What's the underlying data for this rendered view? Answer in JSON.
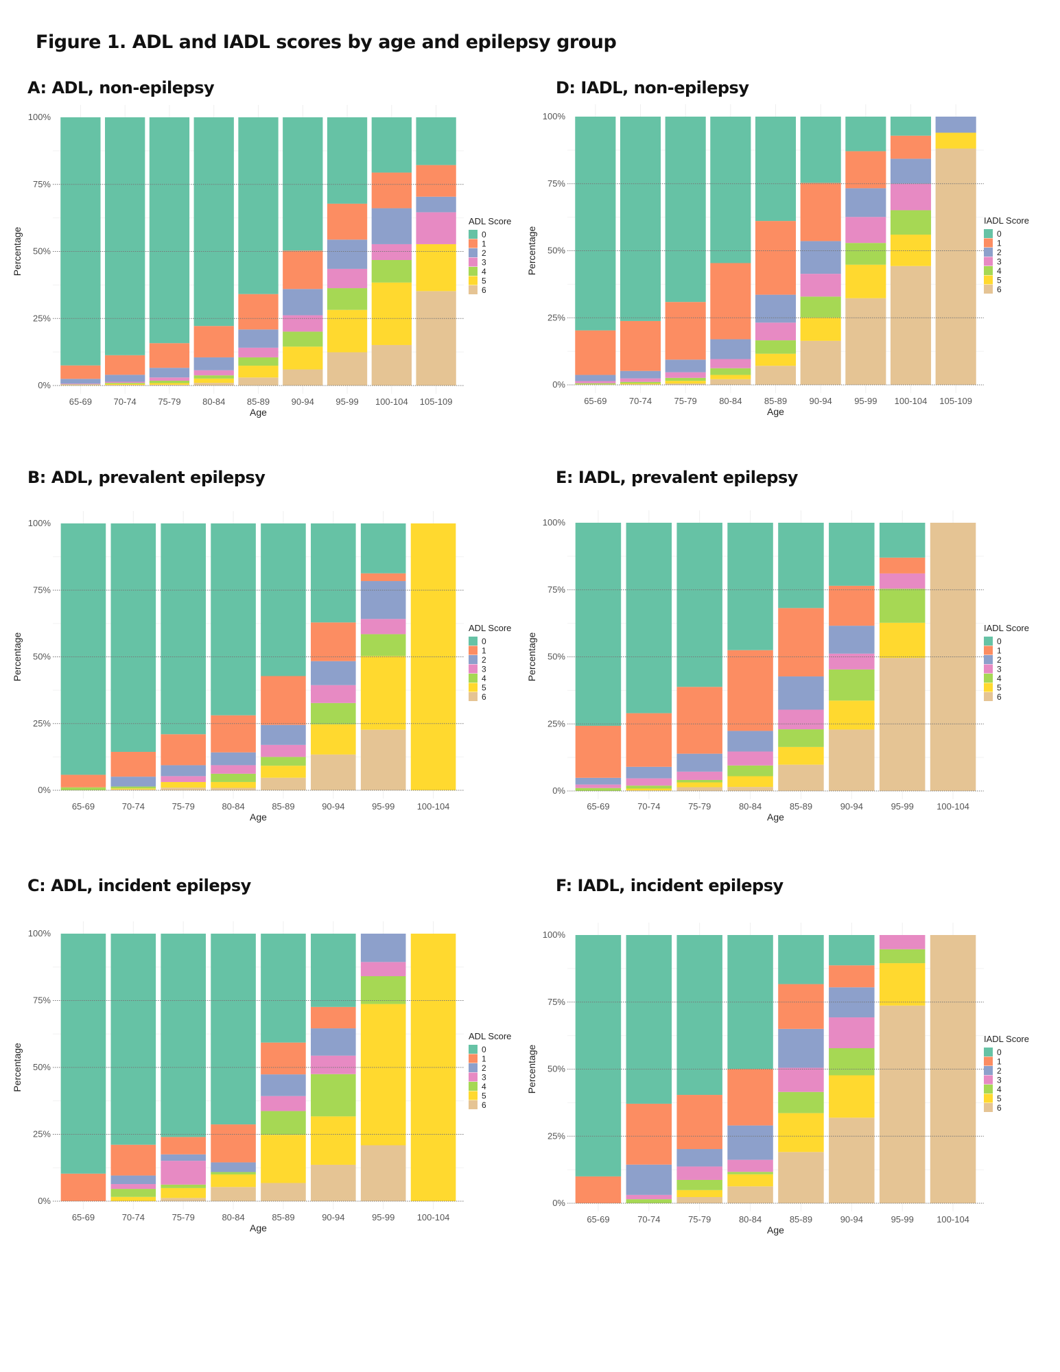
{
  "figure_title": "Figure 1. ADL and IADL scores by age and epilepsy group",
  "palette": {
    "0": "#66C2A5",
    "1": "#FC8D62",
    "2": "#8DA0CB",
    "3": "#E78AC3",
    "4": "#A6D854",
    "5": "#FFD92F",
    "6": "#E5C494"
  },
  "chart_data": [
    {
      "id": "A",
      "type": "bar",
      "stacked": true,
      "title": "A: ADL, non-epilepsy",
      "xlabel": "Age",
      "ylabel": "Percentage",
      "ylim": [
        0,
        100
      ],
      "yticks": [
        "0%",
        "25%",
        "50%",
        "75%",
        "100%"
      ],
      "grid": true,
      "legend": {
        "title": "ADL Score",
        "position": "right",
        "entries": [
          "0",
          "1",
          "2",
          "3",
          "4",
          "5",
          "6"
        ]
      },
      "categories": [
        "65-69",
        "70-74",
        "75-79",
        "80-84",
        "85-89",
        "90-94",
        "95-99",
        "100-104",
        "105-109"
      ],
      "series": [
        {
          "name": "0",
          "values": [
            92.5,
            88.7,
            84.2,
            77.8,
            65.9,
            49.7,
            32.2,
            20.6,
            17.8
          ]
        },
        {
          "name": "1",
          "values": [
            5.0,
            7.3,
            9.2,
            11.7,
            13.2,
            14.3,
            13.4,
            13.3,
            11.8
          ]
        },
        {
          "name": "2",
          "values": [
            1.8,
            2.6,
            3.6,
            4.8,
            6.8,
            9.8,
            10.9,
            13.4,
            5.8
          ]
        },
        {
          "name": "3",
          "values": [
            0.3,
            0.4,
            1.2,
            1.9,
            3.6,
            6.1,
            7.2,
            5.9,
            11.9
          ]
        },
        {
          "name": "4",
          "values": [
            0.1,
            0.4,
            0.9,
            1.2,
            3.1,
            5.6,
            8.1,
            8.4,
            0.0
          ]
        },
        {
          "name": "5",
          "values": [
            0.1,
            0.4,
            0.6,
            1.6,
            4.4,
            8.5,
            15.8,
            23.3,
            17.5
          ]
        },
        {
          "name": "6",
          "values": [
            0.2,
            0.2,
            0.3,
            1.0,
            3.0,
            6.0,
            12.4,
            15.1,
            35.2
          ]
        }
      ]
    },
    {
      "id": "D",
      "type": "bar",
      "stacked": true,
      "title": "D: IADL, non-epilepsy",
      "xlabel": "Age",
      "ylabel": "Percentage",
      "ylim": [
        0,
        100
      ],
      "yticks": [
        "0%",
        "25%",
        "50%",
        "75%",
        "100%"
      ],
      "grid": true,
      "legend": {
        "title": "IADL Score",
        "position": "right",
        "entries": [
          "0",
          "1",
          "2",
          "3",
          "4",
          "5",
          "6"
        ]
      },
      "categories": [
        "65-69",
        "70-74",
        "75-79",
        "80-84",
        "85-89",
        "90-94",
        "95-99",
        "100-104",
        "105-109"
      ],
      "series": [
        {
          "name": "0",
          "values": [
            79.7,
            76.2,
            69.1,
            54.6,
            38.9,
            24.7,
            12.9,
            7.1,
            0.0
          ]
        },
        {
          "name": "1",
          "values": [
            16.6,
            18.6,
            21.5,
            28.4,
            27.5,
            21.7,
            13.8,
            8.6,
            0.0
          ]
        },
        {
          "name": "2",
          "values": [
            2.3,
            2.8,
            4.7,
            7.4,
            10.4,
            12.2,
            10.7,
            9.3,
            6.0
          ]
        },
        {
          "name": "3",
          "values": [
            0.8,
            1.3,
            2.1,
            3.4,
            6.6,
            8.5,
            9.7,
            9.9,
            0.0
          ]
        },
        {
          "name": "4",
          "values": [
            0.4,
            0.6,
            1.1,
            2.5,
            5.0,
            7.8,
            8.1,
            9.1,
            0.0
          ]
        },
        {
          "name": "5",
          "values": [
            0.1,
            0.3,
            1.0,
            1.6,
            4.5,
            8.7,
            12.5,
            11.7,
            5.9
          ]
        },
        {
          "name": "6",
          "values": [
            0.1,
            0.2,
            0.5,
            2.1,
            7.1,
            16.4,
            32.3,
            44.3,
            88.1
          ]
        }
      ]
    },
    {
      "id": "B",
      "type": "bar",
      "stacked": true,
      "title": "B: ADL, prevalent epilepsy",
      "xlabel": "Age",
      "ylabel": "Percentage",
      "ylim": [
        0,
        100
      ],
      "yticks": [
        "0%",
        "25%",
        "50%",
        "75%",
        "100%"
      ],
      "grid": true,
      "legend": {
        "title": "ADL Score",
        "position": "right",
        "entries": [
          "0",
          "1",
          "2",
          "3",
          "4",
          "5",
          "6"
        ]
      },
      "categories": [
        "65-69",
        "70-74",
        "75-79",
        "80-84",
        "85-89",
        "90-94",
        "95-99",
        "100-104"
      ],
      "series": [
        {
          "name": "0",
          "values": [
            94.2,
            85.6,
            79.0,
            71.9,
            57.2,
            37.1,
            18.7,
            0.0
          ]
        },
        {
          "name": "1",
          "values": [
            4.7,
            9.3,
            11.6,
            13.9,
            18.3,
            14.5,
            2.9,
            0.0
          ]
        },
        {
          "name": "2",
          "values": [
            0.0,
            3.7,
            4.1,
            4.8,
            7.5,
            9.0,
            14.2,
            0.0
          ]
        },
        {
          "name": "3",
          "values": [
            0.0,
            0.0,
            2.2,
            3.2,
            4.5,
            6.7,
            5.7,
            0.0
          ]
        },
        {
          "name": "4",
          "values": [
            1.1,
            0.7,
            0.0,
            3.1,
            3.3,
            8.0,
            8.2,
            0.0
          ]
        },
        {
          "name": "5",
          "values": [
            0.0,
            0.4,
            2.1,
            2.2,
            4.5,
            11.3,
            27.6,
            100.0
          ]
        },
        {
          "name": "6",
          "values": [
            0.0,
            0.3,
            1.0,
            0.9,
            4.7,
            13.4,
            22.7,
            0.0
          ]
        }
      ]
    },
    {
      "id": "E",
      "type": "bar",
      "stacked": true,
      "title": "E: IADL, prevalent epilepsy",
      "xlabel": "Age",
      "ylabel": "Percentage",
      "ylim": [
        0,
        100
      ],
      "yticks": [
        "0%",
        "25%",
        "50%",
        "75%",
        "100%"
      ],
      "grid": true,
      "legend": {
        "title": "IADL Score",
        "position": "right",
        "entries": [
          "0",
          "1",
          "2",
          "3",
          "4",
          "5",
          "6"
        ]
      },
      "categories": [
        "65-69",
        "70-74",
        "75-79",
        "80-84",
        "85-89",
        "90-94",
        "95-99",
        "100-104"
      ],
      "series": [
        {
          "name": "0",
          "values": [
            75.7,
            71.0,
            61.2,
            47.5,
            31.8,
            23.5,
            13.0,
            0.0
          ]
        },
        {
          "name": "1",
          "values": [
            19.4,
            20.0,
            24.9,
            30.1,
            25.5,
            14.9,
            5.9,
            0.0
          ]
        },
        {
          "name": "2",
          "values": [
            2.5,
            4.3,
            6.7,
            7.7,
            12.4,
            10.4,
            0.0,
            0.0
          ]
        },
        {
          "name": "3",
          "values": [
            1.3,
            2.7,
            3.1,
            5.2,
            7.3,
            5.9,
            5.7,
            0.0
          ]
        },
        {
          "name": "4",
          "values": [
            1.1,
            1.1,
            0.9,
            4.0,
            6.6,
            11.6,
            12.7,
            0.0
          ]
        },
        {
          "name": "5",
          "values": [
            0.0,
            0.7,
            1.8,
            4.0,
            6.6,
            10.8,
            13.1,
            0.0
          ]
        },
        {
          "name": "6",
          "values": [
            0.0,
            0.2,
            1.4,
            1.5,
            9.8,
            22.9,
            49.6,
            100.0
          ]
        }
      ]
    },
    {
      "id": "C",
      "type": "bar",
      "stacked": true,
      "title": "C: ADL, incident epilepsy",
      "xlabel": "Age",
      "ylabel": "Percentage",
      "ylim": [
        0,
        100
      ],
      "yticks": [
        "0%",
        "25%",
        "50%",
        "75%",
        "100%"
      ],
      "grid": true,
      "legend": {
        "title": "ADL Score",
        "position": "right",
        "entries": [
          "0",
          "1",
          "2",
          "3",
          "4",
          "5",
          "6"
        ]
      },
      "categories": [
        "65-69",
        "70-74",
        "75-79",
        "80-84",
        "85-89",
        "90-94",
        "95-99",
        "100-104"
      ],
      "series": [
        {
          "name": "0",
          "values": [
            89.7,
            78.9,
            76.0,
            71.3,
            40.7,
            27.4,
            0.0,
            0.0
          ]
        },
        {
          "name": "1",
          "values": [
            10.3,
            11.5,
            6.5,
            14.2,
            11.9,
            8.0,
            0.0,
            0.0
          ]
        },
        {
          "name": "2",
          "values": [
            0.0,
            3.2,
            2.4,
            3.6,
            8.1,
            10.2,
            10.6,
            0.0
          ]
        },
        {
          "name": "3",
          "values": [
            0.0,
            1.8,
            8.9,
            0.0,
            5.6,
            6.9,
            5.3,
            0.0
          ]
        },
        {
          "name": "4",
          "values": [
            0.0,
            3.0,
            1.3,
            0.9,
            8.9,
            15.8,
            10.4,
            0.0
          ]
        },
        {
          "name": "5",
          "values": [
            0.0,
            1.6,
            3.7,
            4.7,
            18.0,
            18.1,
            52.8,
            100.0
          ]
        },
        {
          "name": "6",
          "values": [
            0.0,
            0.0,
            1.2,
            5.3,
            6.8,
            13.6,
            20.9,
            0.0
          ]
        }
      ]
    },
    {
      "id": "F",
      "type": "bar",
      "stacked": true,
      "title": "F: IADL, incident epilepsy",
      "xlabel": "Age",
      "ylabel": "Percentage",
      "ylim": [
        0,
        100
      ],
      "yticks": [
        "0%",
        "25%",
        "50%",
        "75%",
        "100%"
      ],
      "grid": true,
      "legend": {
        "title": "IADL Score",
        "position": "right",
        "entries": [
          "0",
          "1",
          "2",
          "3",
          "4",
          "5",
          "6"
        ]
      },
      "categories": [
        "65-69",
        "70-74",
        "75-79",
        "80-84",
        "85-89",
        "90-94",
        "95-99",
        "100-104"
      ],
      "series": [
        {
          "name": "0",
          "values": [
            90.0,
            62.9,
            59.6,
            49.9,
            18.3,
            11.3,
            0.0,
            0.0
          ]
        },
        {
          "name": "1",
          "values": [
            10.0,
            22.7,
            20.2,
            21.1,
            16.7,
            8.2,
            0.0,
            0.0
          ]
        },
        {
          "name": "2",
          "values": [
            0.0,
            11.3,
            6.5,
            12.8,
            14.5,
            11.2,
            0.0,
            0.0
          ]
        },
        {
          "name": "3",
          "values": [
            0.0,
            1.6,
            5.0,
            4.5,
            9.0,
            11.5,
            5.3,
            0.0
          ]
        },
        {
          "name": "4",
          "values": [
            0.0,
            1.5,
            3.8,
            0.9,
            7.9,
            10.1,
            5.2,
            0.0
          ]
        },
        {
          "name": "5",
          "values": [
            0.0,
            0.0,
            2.6,
            4.5,
            14.5,
            15.8,
            15.8,
            0.0
          ]
        },
        {
          "name": "6",
          "values": [
            0.0,
            0.0,
            2.3,
            6.3,
            19.1,
            31.9,
            73.7,
            100.0
          ]
        }
      ]
    }
  ]
}
